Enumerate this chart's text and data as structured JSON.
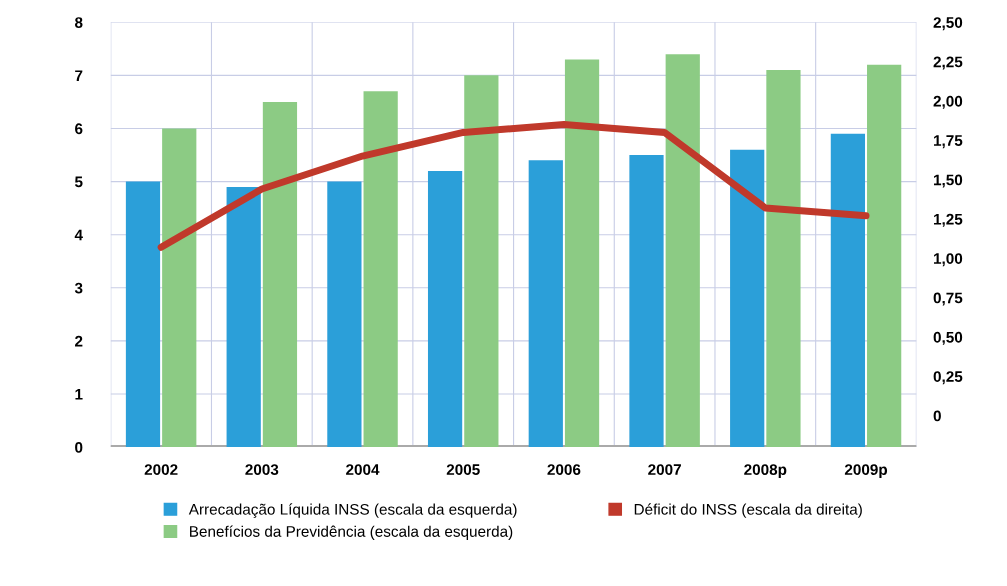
{
  "chart_data": {
    "type": "bar",
    "categories": [
      "2002",
      "2003",
      "2004",
      "2005",
      "2006",
      "2007",
      "2008p",
      "2009p"
    ],
    "series": [
      {
        "name": "Arrecadação Líquida INSS (escala da esquerda)",
        "color": "#2b9fd9",
        "values": [
          5.0,
          4.9,
          5.0,
          5.2,
          5.4,
          5.5,
          5.6,
          5.9
        ]
      },
      {
        "name": "Benefícios da Previdência (escala da esquerda)",
        "color": "#8ccb84",
        "values": [
          6.0,
          6.5,
          6.7,
          7.0,
          7.3,
          7.4,
          7.1,
          7.2
        ]
      },
      {
        "name": "Déficit do INSS (escala da direita)",
        "color": "#c0392b",
        "type": "line",
        "axis": "y2",
        "values": [
          1.07,
          1.44,
          1.65,
          1.8,
          1.85,
          1.8,
          1.32,
          1.27
        ]
      }
    ],
    "ylim": [
      0,
      8
    ],
    "yticks": [
      0,
      1,
      2,
      3,
      4,
      5,
      6,
      7,
      8
    ],
    "y2lim": [
      -0.2,
      2.5
    ],
    "y2ticks": [
      0,
      {
        "value": 0.25,
        "label": "0,25"
      },
      {
        "value": 0.5,
        "label": "0,50"
      },
      {
        "value": 0.75,
        "label": "0,75"
      },
      {
        "value": 1.0,
        "label": "1,00"
      },
      {
        "value": 1.25,
        "label": "1,25"
      },
      {
        "value": 1.5,
        "label": "1,50"
      },
      {
        "value": 1.75,
        "label": "1,75"
      },
      {
        "value": 2.0,
        "label": "2,00"
      },
      {
        "value": 2.25,
        "label": "2,25"
      },
      {
        "value": 2.5,
        "label": "2,50"
      }
    ],
    "grid": true,
    "legend": "bottom"
  }
}
